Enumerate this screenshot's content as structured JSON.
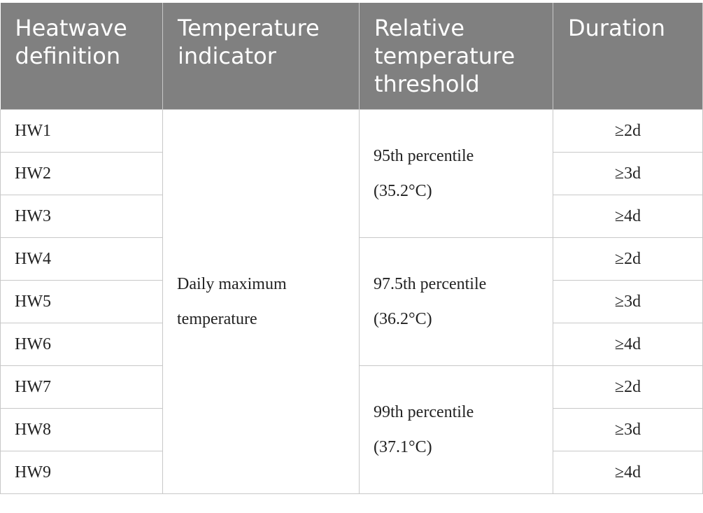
{
  "table": {
    "headers": [
      "Heatwave definition",
      "Temperature indicator",
      "Relative temperature threshold",
      "Duration"
    ],
    "indicator": [
      "Daily maximum",
      "temperature"
    ],
    "thresholds": [
      [
        "95th percentile",
        "(35.2°C)"
      ],
      [
        "97.5th percentile",
        "(36.2°C)"
      ],
      [
        "99th percentile",
        "(37.1°C)"
      ]
    ],
    "rows": [
      {
        "definition": "HW1",
        "duration": "≥2d"
      },
      {
        "definition": "HW2",
        "duration": "≥3d"
      },
      {
        "definition": "HW3",
        "duration": "≥4d"
      },
      {
        "definition": "HW4",
        "duration": "≥2d"
      },
      {
        "definition": "HW5",
        "duration": "≥3d"
      },
      {
        "definition": "HW6",
        "duration": "≥4d"
      },
      {
        "definition": "HW7",
        "duration": "≥2d"
      },
      {
        "definition": "HW8",
        "duration": "≥3d"
      },
      {
        "definition": "HW9",
        "duration": "≥4d"
      }
    ]
  }
}
